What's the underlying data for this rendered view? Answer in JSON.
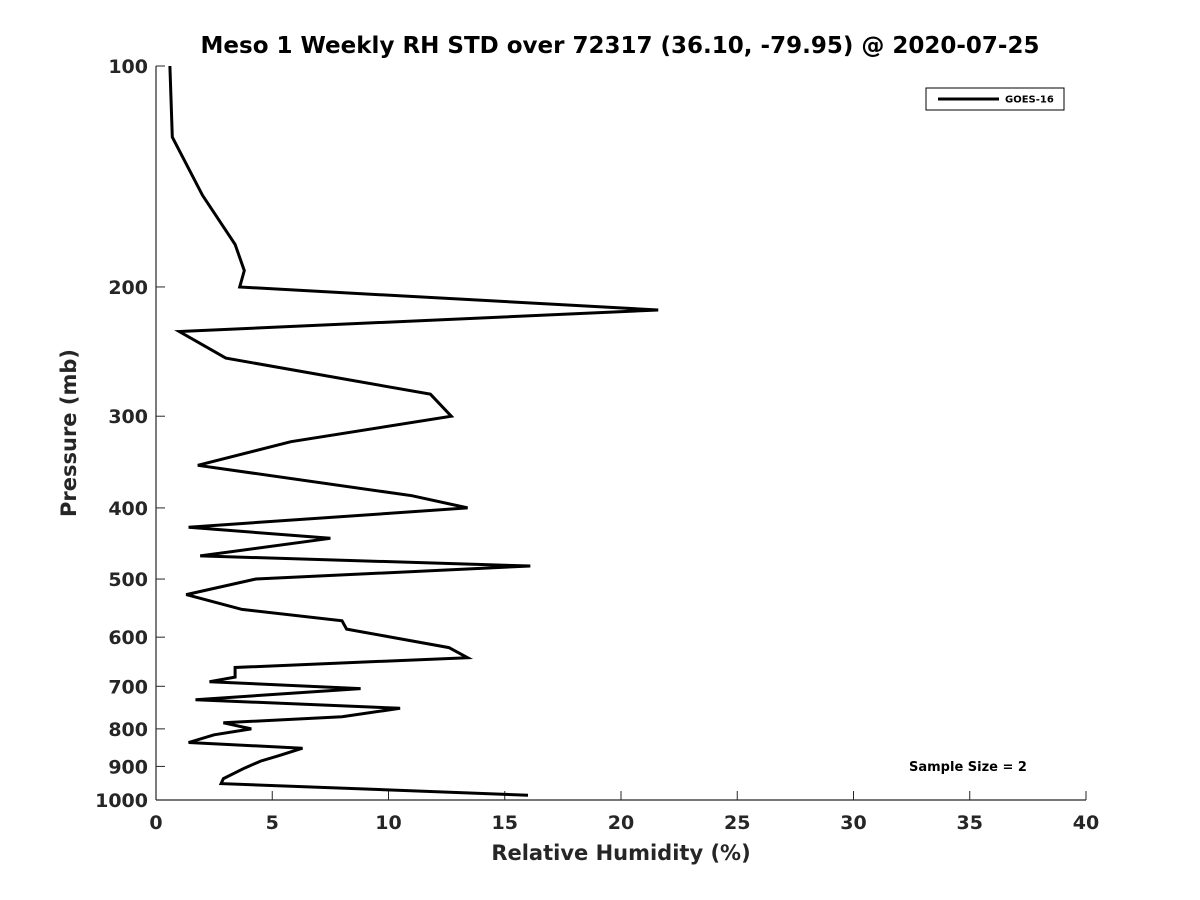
{
  "chart_data": {
    "type": "line",
    "title": "Meso 1 Weekly RH STD over 72317 (36.10, -79.95) @ 2020-07-25",
    "xlabel": "Relative Humidity (%)",
    "ylabel": "Pressure (mb)",
    "xlim": [
      0,
      40
    ],
    "ylim": [
      100,
      1000
    ],
    "y_scale": "log",
    "y_reversed": true,
    "x_ticks": [
      0,
      5,
      10,
      15,
      20,
      25,
      30,
      35,
      40
    ],
    "x_tick_labels": [
      "0",
      "5",
      "10",
      "15",
      "20",
      "25",
      "30",
      "35",
      "40"
    ],
    "y_ticks": [
      100,
      200,
      300,
      400,
      500,
      600,
      700,
      800,
      900,
      1000
    ],
    "y_tick_labels": [
      "100",
      "200",
      "300",
      "400",
      "500",
      "600",
      "700",
      "800",
      "900",
      "1000"
    ],
    "grid": false,
    "legend_position": "top-right",
    "annotation": "Sample Size = 2",
    "series": [
      {
        "name": "GOES-16",
        "color": "#000000",
        "points": [
          [
            0.6,
            100
          ],
          [
            0.7,
            125
          ],
          [
            2.0,
            150
          ],
          [
            3.4,
            175
          ],
          [
            3.8,
            190
          ],
          [
            3.6,
            200
          ],
          [
            21.6,
            215
          ],
          [
            1.0,
            230
          ],
          [
            3.0,
            250
          ],
          [
            11.8,
            280
          ],
          [
            12.7,
            300
          ],
          [
            5.8,
            325
          ],
          [
            1.8,
            350
          ],
          [
            11.0,
            385
          ],
          [
            13.4,
            400
          ],
          [
            1.4,
            425
          ],
          [
            7.5,
            440
          ],
          [
            1.9,
            465
          ],
          [
            16.1,
            480
          ],
          [
            4.3,
            500
          ],
          [
            1.3,
            525
          ],
          [
            3.7,
            550
          ],
          [
            8.0,
            570
          ],
          [
            8.2,
            585
          ],
          [
            12.6,
            620
          ],
          [
            13.4,
            640
          ],
          [
            3.4,
            660
          ],
          [
            3.4,
            680
          ],
          [
            2.3,
            690
          ],
          [
            8.8,
            705
          ],
          [
            1.7,
            730
          ],
          [
            10.5,
            750
          ],
          [
            8.0,
            770
          ],
          [
            2.9,
            785
          ],
          [
            4.1,
            800
          ],
          [
            2.5,
            815
          ],
          [
            1.4,
            835
          ],
          [
            6.3,
            850
          ],
          [
            5.3,
            870
          ],
          [
            4.5,
            885
          ],
          [
            3.8,
            905
          ],
          [
            2.9,
            935
          ],
          [
            2.8,
            950
          ],
          [
            16.0,
            985
          ]
        ]
      }
    ]
  }
}
